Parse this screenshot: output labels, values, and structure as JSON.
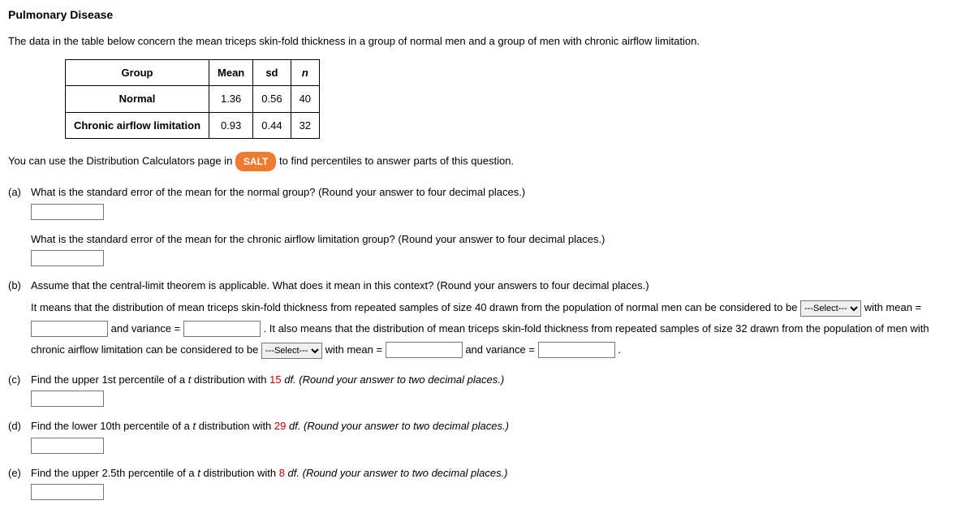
{
  "title": "Pulmonary Disease",
  "intro": "The data in the table below concern the mean triceps skin-fold thickness in a group of normal men and a group of men with chronic airflow limitation.",
  "table": {
    "headers": {
      "group": "Group",
      "mean": "Mean",
      "sd": "sd",
      "n": "n"
    },
    "rows": [
      {
        "group": "Normal",
        "mean": "1.36",
        "sd": "0.56",
        "n": "40"
      },
      {
        "group": "Chronic airflow limitation",
        "mean": "0.93",
        "sd": "0.44",
        "n": "32"
      }
    ]
  },
  "salt": {
    "prefix": "You can use the Distribution Calculators page in ",
    "badge": "SALT",
    "suffix": " to find percentiles to answer parts of this question."
  },
  "parts": {
    "a": {
      "label": "(a)",
      "q1": "What is the standard error of the mean for the normal group? (Round your answer to four decimal places.)",
      "q2": "What is the standard error of the mean for the chronic airflow limitation group? (Round your answer to four decimal places.)"
    },
    "b": {
      "label": "(b)",
      "lead": "Assume that the central-limit theorem is applicable. What does it mean in this context? (Round your answers to four decimal places.)",
      "t1": "It means that the distribution of mean triceps skin-fold thickness from repeated samples of size 40 drawn from the population of normal men can be considered to be ",
      "t2": " with mean = ",
      "t3": " and variance = ",
      "t4": " . It also means that the distribution of mean triceps skin-fold thickness from repeated samples of size 32 drawn from the population of men with chronic airflow limitation can be considered to be ",
      "t5": " with mean = ",
      "t6": " and variance = ",
      "t7": " .",
      "select_placeholder": "---Select---"
    },
    "c": {
      "label": "(c)",
      "pre": "Find the upper 1st percentile of a ",
      "t": "t",
      "mid": " distribution with ",
      "df": "15",
      "post": " df. (Round your answer to two decimal places.)"
    },
    "d": {
      "label": "(d)",
      "pre": "Find the lower 10th percentile of a ",
      "t": "t",
      "mid": " distribution with ",
      "df": "29",
      "post": " df. (Round your answer to two decimal places.)"
    },
    "e": {
      "label": "(e)",
      "pre": "Find the upper 2.5th percentile of a ",
      "t": "t",
      "mid": " distribution with ",
      "df": "8",
      "post": " df. (Round your answer to two decimal places.)"
    }
  }
}
